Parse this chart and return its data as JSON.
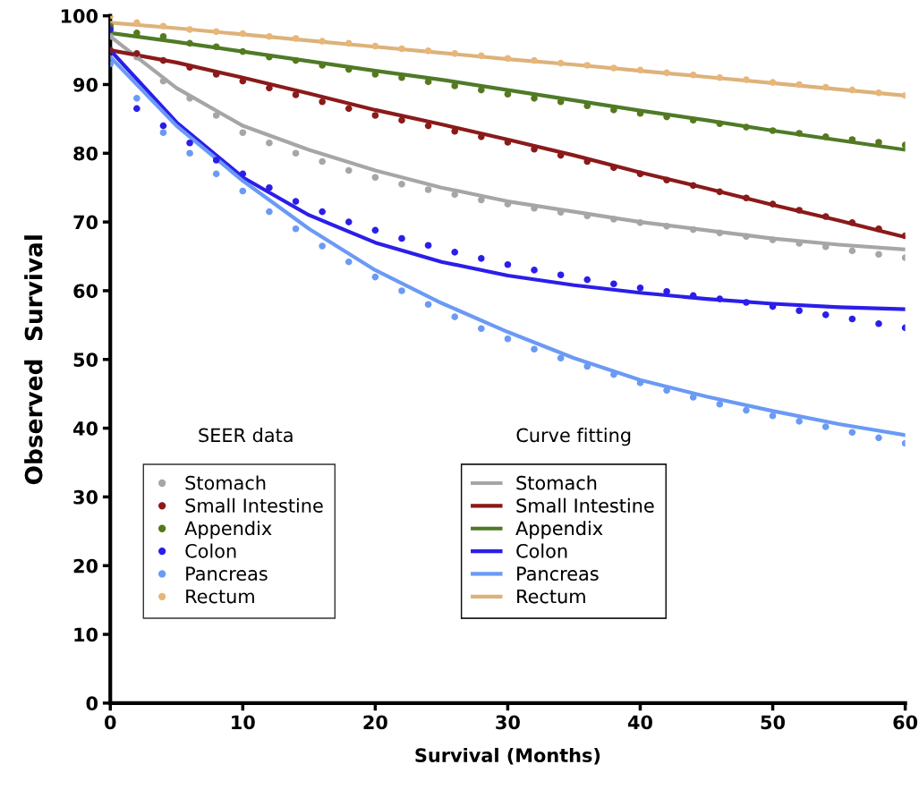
{
  "chart_data": {
    "type": "scatter",
    "xlabel": "Survival (Months)",
    "ylabel": "Observed  Survival",
    "xlim": [
      0,
      60
    ],
    "ylim": [
      0,
      100
    ],
    "xticks": [
      0,
      10,
      20,
      30,
      40,
      50,
      60
    ],
    "yticks": [
      0,
      10,
      20,
      30,
      40,
      50,
      60,
      70,
      80,
      90,
      100
    ],
    "grid": false,
    "legend": "bottom left",
    "annotations": [
      "SEER data",
      "Curve fitting"
    ],
    "series": [
      {
        "name": "Stomach",
        "marker": "circle",
        "color": "#a6a6a6",
        "x": [
          0,
          2,
          4,
          6,
          8,
          10,
          12,
          14,
          16,
          18,
          20,
          22,
          24,
          26,
          28,
          30,
          32,
          34,
          36,
          38,
          40,
          42,
          44,
          46,
          48,
          50,
          52,
          54,
          56,
          58,
          60
        ],
        "values": [
          97,
          94,
          90.5,
          88,
          85.5,
          83,
          81.5,
          80,
          78.8,
          77.5,
          76.5,
          75.5,
          74.7,
          74,
          73.2,
          72.6,
          72,
          71.4,
          70.9,
          70.4,
          69.9,
          69.4,
          68.9,
          68.4,
          67.9,
          67.4,
          66.9,
          66.4,
          65.8,
          65.3,
          64.8
        ]
      },
      {
        "name": "Small Intestine",
        "marker": "circle",
        "color": "#8b1a1a",
        "x": [
          0,
          2,
          4,
          6,
          8,
          10,
          12,
          14,
          16,
          18,
          20,
          22,
          24,
          26,
          28,
          30,
          32,
          34,
          36,
          38,
          40,
          42,
          44,
          46,
          48,
          50,
          52,
          54,
          56,
          58,
          60
        ],
        "values": [
          95,
          94.5,
          93.5,
          92.5,
          91.5,
          90.5,
          89.5,
          88.5,
          87.5,
          86.5,
          85.5,
          84.8,
          84,
          83.2,
          82.4,
          81.6,
          80.6,
          79.7,
          78.8,
          77.9,
          77,
          76.1,
          75.3,
          74.4,
          73.5,
          72.6,
          71.7,
          70.8,
          69.9,
          69,
          68
        ]
      },
      {
        "name": "Appendix",
        "marker": "circle",
        "color": "#557a1e",
        "x": [
          0,
          2,
          4,
          6,
          8,
          10,
          12,
          14,
          16,
          18,
          20,
          22,
          24,
          26,
          28,
          30,
          32,
          34,
          36,
          38,
          40,
          42,
          44,
          46,
          48,
          50,
          52,
          54,
          56,
          58,
          60
        ],
        "values": [
          98.5,
          97.5,
          97,
          96,
          95.5,
          94.8,
          94,
          93.5,
          92.8,
          92.2,
          91.5,
          91,
          90.4,
          89.8,
          89.2,
          88.6,
          88,
          87.5,
          86.9,
          86.3,
          85.8,
          85.3,
          84.8,
          84.3,
          83.8,
          83.3,
          82.9,
          82.4,
          82,
          81.6,
          81.2
        ]
      },
      {
        "name": "Colon",
        "marker": "circle",
        "color": "#2b1ee8",
        "x": [
          0,
          2,
          4,
          6,
          8,
          10,
          12,
          14,
          16,
          18,
          20,
          22,
          24,
          26,
          28,
          30,
          32,
          34,
          36,
          38,
          40,
          42,
          44,
          46,
          48,
          50,
          52,
          54,
          56,
          58,
          60
        ],
        "values": [
          98,
          86.5,
          84,
          81.5,
          79,
          77,
          75,
          73,
          71.5,
          70,
          68.8,
          67.6,
          66.6,
          65.6,
          64.7,
          63.8,
          63,
          62.3,
          61.6,
          61,
          60.4,
          59.9,
          59.3,
          58.8,
          58.3,
          57.7,
          57.1,
          56.5,
          55.9,
          55.2,
          54.6
        ]
      },
      {
        "name": "Pancreas",
        "marker": "circle",
        "color": "#6b9af5",
        "x": [
          0,
          2,
          4,
          6,
          8,
          10,
          12,
          14,
          16,
          18,
          20,
          22,
          24,
          26,
          28,
          30,
          32,
          34,
          36,
          38,
          40,
          42,
          44,
          46,
          48,
          50,
          52,
          54,
          56,
          58,
          60
        ],
        "values": [
          93,
          88,
          83,
          80,
          77,
          74.5,
          71.5,
          69,
          66.5,
          64.2,
          62,
          60,
          58,
          56.2,
          54.5,
          53,
          51.5,
          50.2,
          49,
          47.8,
          46.6,
          45.5,
          44.5,
          43.5,
          42.6,
          41.8,
          41,
          40.2,
          39.4,
          38.6,
          37.8
        ]
      },
      {
        "name": "Rectum",
        "marker": "circle",
        "color": "#e8b678",
        "x": [
          0,
          2,
          4,
          6,
          8,
          10,
          12,
          14,
          16,
          18,
          20,
          22,
          24,
          26,
          28,
          30,
          32,
          34,
          36,
          38,
          40,
          42,
          44,
          46,
          48,
          50,
          52,
          54,
          56,
          58,
          60
        ],
        "values": [
          100,
          99,
          98.5,
          98,
          97.7,
          97.4,
          97,
          96.7,
          96.3,
          96,
          95.6,
          95.2,
          94.9,
          94.5,
          94.2,
          93.8,
          93.5,
          93.1,
          92.8,
          92.4,
          92.1,
          91.7,
          91.4,
          91,
          90.7,
          90.3,
          90,
          89.6,
          89.2,
          88.8,
          88.4
        ]
      },
      {
        "name": "Stomach",
        "type": "line",
        "marker": "none",
        "color": "#a6a6a6",
        "x": [
          0,
          5,
          10,
          15,
          20,
          25,
          30,
          35,
          40,
          45,
          50,
          55,
          60
        ],
        "values": [
          97,
          89.5,
          84,
          80.5,
          77.5,
          75,
          73,
          71.5,
          70,
          68.8,
          67.6,
          66.7,
          66
        ]
      },
      {
        "name": "Small Intestine",
        "type": "line",
        "marker": "none",
        "color": "#8b1a1a",
        "x": [
          0,
          5,
          10,
          15,
          20,
          25,
          30,
          35,
          40,
          45,
          50,
          55,
          60
        ],
        "values": [
          95,
          93.2,
          91,
          88.7,
          86.3,
          84.2,
          82,
          79.7,
          77.2,
          74.9,
          72.5,
          70.2,
          67.8
        ]
      },
      {
        "name": "Appendix",
        "type": "line",
        "marker": "none",
        "color": "#4f7a28",
        "x": [
          0,
          5,
          10,
          15,
          20,
          25,
          30,
          35,
          40,
          45,
          50,
          55,
          60
        ],
        "values": [
          97.5,
          96.2,
          94.8,
          93.4,
          92,
          90.7,
          89.2,
          87.7,
          86.2,
          84.8,
          83.3,
          81.9,
          80.5
        ]
      },
      {
        "name": "Colon",
        "type": "line",
        "marker": "none",
        "color": "#2b1ee8",
        "x": [
          0,
          5,
          10,
          15,
          20,
          25,
          30,
          35,
          40,
          45,
          50,
          55,
          60
        ],
        "values": [
          95,
          84.5,
          76.5,
          71,
          67,
          64.2,
          62.2,
          60.8,
          59.7,
          58.8,
          58.1,
          57.6,
          57.3
        ]
      },
      {
        "name": "Pancreas",
        "type": "line",
        "marker": "none",
        "color": "#6b9af5",
        "x": [
          0,
          5,
          10,
          15,
          20,
          25,
          30,
          35,
          40,
          45,
          50,
          55,
          60
        ],
        "values": [
          94,
          84,
          76,
          69,
          63,
          58.2,
          54,
          50.2,
          47,
          44.6,
          42.5,
          40.6,
          39
        ]
      },
      {
        "name": "Rectum",
        "type": "line",
        "marker": "none",
        "color": "#ddb27a",
        "x": [
          0,
          5,
          10,
          15,
          20,
          25,
          30,
          35,
          40,
          45,
          50,
          55,
          60
        ],
        "values": [
          99,
          98.2,
          97.3,
          96.4,
          95.5,
          94.6,
          93.7,
          92.9,
          92,
          91.1,
          90.2,
          89.3,
          88.4
        ]
      }
    ]
  }
}
